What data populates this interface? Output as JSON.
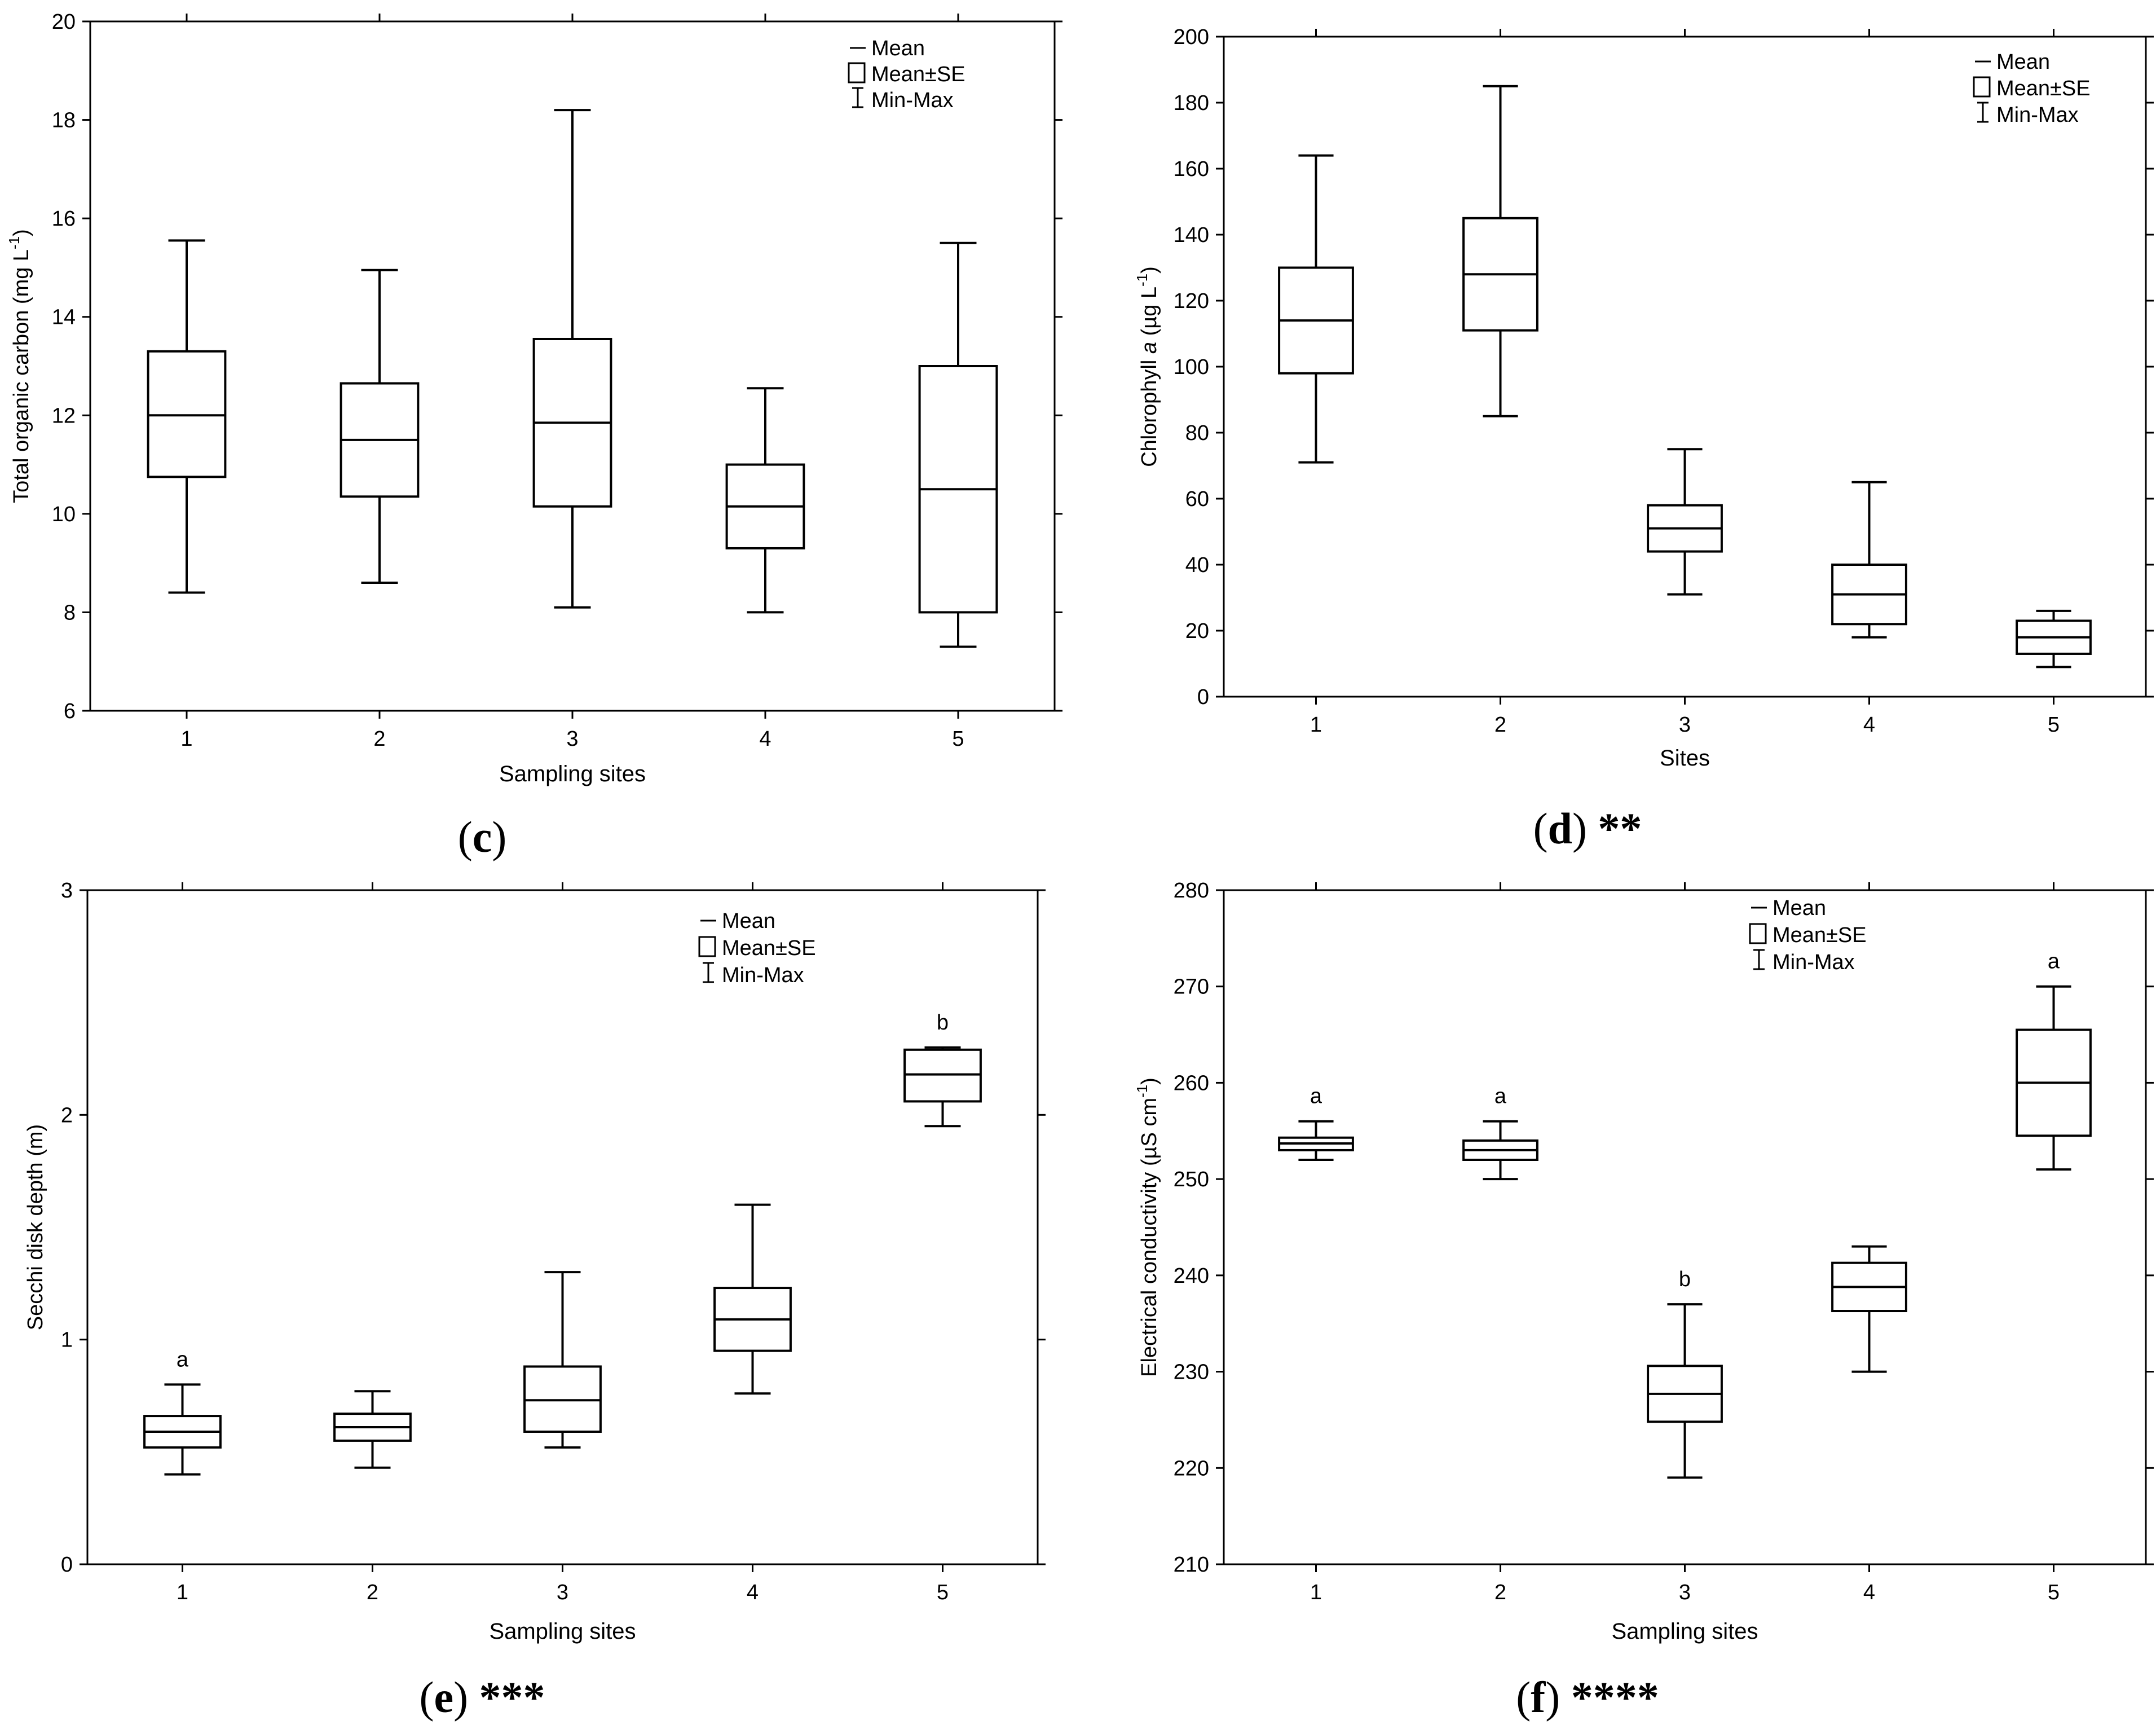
{
  "figure": {
    "legend": {
      "mean": "Mean",
      "se": "Mean±SE",
      "minmax": "Min-Max"
    }
  },
  "chart_data": [
    {
      "id": "c",
      "type": "box",
      "caption_letter": "c",
      "caption_stars": "",
      "xlabel": "Sampling sites",
      "ylabel_main": "Total organic carbon (mg L",
      "ylabel_sup": "-1",
      "ylabel_tail": ")",
      "ylabel_italic": "",
      "ylabel_rest": "",
      "ylim": [
        6,
        20
      ],
      "yticks": [
        6,
        8,
        10,
        12,
        14,
        16,
        18,
        20
      ],
      "categories": [
        "1",
        "2",
        "3",
        "4",
        "5"
      ],
      "series": [
        {
          "site": "1",
          "min": 8.4,
          "se_low": 10.75,
          "mean": 12.0,
          "se_high": 13.3,
          "max": 15.55,
          "letter": ""
        },
        {
          "site": "2",
          "min": 8.6,
          "se_low": 10.35,
          "mean": 11.5,
          "se_high": 12.65,
          "max": 14.95,
          "letter": ""
        },
        {
          "site": "3",
          "min": 8.1,
          "se_low": 10.15,
          "mean": 11.85,
          "se_high": 13.55,
          "max": 18.2,
          "letter": ""
        },
        {
          "site": "4",
          "min": 8.0,
          "se_low": 9.3,
          "mean": 10.15,
          "se_high": 11.0,
          "max": 12.55,
          "letter": ""
        },
        {
          "site": "5",
          "min": 7.3,
          "se_low": 8.0,
          "mean": 10.5,
          "se_high": 13.0,
          "max": 15.5,
          "letter": ""
        }
      ]
    },
    {
      "id": "d",
      "type": "box",
      "caption_letter": "d",
      "caption_stars": "**",
      "xlabel": "Sites",
      "ylabel_main": "Chlorophyll ",
      "ylabel_italic": "a",
      "ylabel_rest": " (µg L",
      "ylabel_sup": "-1",
      "ylabel_tail": ")",
      "ylim": [
        0,
        200
      ],
      "yticks": [
        0,
        20,
        40,
        60,
        80,
        100,
        120,
        140,
        160,
        180,
        200
      ],
      "categories": [
        "1",
        "2",
        "3",
        "4",
        "5"
      ],
      "series": [
        {
          "site": "1",
          "min": 71,
          "se_low": 98,
          "mean": 114,
          "se_high": 130,
          "max": 164,
          "letter": ""
        },
        {
          "site": "2",
          "min": 85,
          "se_low": 111,
          "mean": 128,
          "se_high": 145,
          "max": 185,
          "letter": ""
        },
        {
          "site": "3",
          "min": 31,
          "se_low": 44,
          "mean": 51,
          "se_high": 58,
          "max": 75,
          "letter": ""
        },
        {
          "site": "4",
          "min": 18,
          "se_low": 22,
          "mean": 31,
          "se_high": 40,
          "max": 65,
          "letter": ""
        },
        {
          "site": "5",
          "min": 9,
          "se_low": 13,
          "mean": 18,
          "se_high": 23,
          "max": 26,
          "letter": ""
        }
      ]
    },
    {
      "id": "e",
      "type": "box",
      "caption_letter": "e",
      "caption_stars": "***",
      "xlabel": "Sampling sites",
      "ylabel_main": "Secchi disk depth (m)",
      "ylabel_italic": "",
      "ylabel_rest": "",
      "ylabel_sup": "",
      "ylabel_tail": "",
      "ylim": [
        0,
        3
      ],
      "yticks": [
        0,
        1,
        2,
        3
      ],
      "categories": [
        "1",
        "2",
        "3",
        "4",
        "5"
      ],
      "series": [
        {
          "site": "1",
          "min": 0.4,
          "se_low": 0.52,
          "mean": 0.59,
          "se_high": 0.66,
          "max": 0.8,
          "letter": "a"
        },
        {
          "site": "2",
          "min": 0.43,
          "se_low": 0.55,
          "mean": 0.61,
          "se_high": 0.67,
          "max": 0.77,
          "letter": ""
        },
        {
          "site": "3",
          "min": 0.52,
          "se_low": 0.59,
          "mean": 0.73,
          "se_high": 0.88,
          "max": 1.3,
          "letter": ""
        },
        {
          "site": "4",
          "min": 0.76,
          "se_low": 0.95,
          "mean": 1.09,
          "se_high": 1.23,
          "max": 1.6,
          "letter": ""
        },
        {
          "site": "5",
          "min": 1.95,
          "se_low": 2.06,
          "mean": 2.18,
          "se_high": 2.29,
          "max": 2.3,
          "letter": "b"
        }
      ]
    },
    {
      "id": "f",
      "type": "box",
      "caption_letter": "f",
      "caption_stars": "****",
      "xlabel": "Sampling sites",
      "ylabel_main": "Electrical conductivity (µS cm",
      "ylabel_italic": "",
      "ylabel_rest": "",
      "ylabel_sup": "-1",
      "ylabel_tail": ")",
      "ylim": [
        210,
        280
      ],
      "yticks": [
        210,
        220,
        230,
        240,
        250,
        260,
        270,
        280
      ],
      "categories": [
        "1",
        "2",
        "3",
        "4",
        "5"
      ],
      "series": [
        {
          "site": "1",
          "min": 252,
          "se_low": 253,
          "mean": 253.7,
          "se_high": 254.3,
          "max": 256,
          "letter": "a"
        },
        {
          "site": "2",
          "min": 250,
          "se_low": 252,
          "mean": 253,
          "se_high": 254,
          "max": 256,
          "letter": "a"
        },
        {
          "site": "3",
          "min": 219,
          "se_low": 224.8,
          "mean": 227.7,
          "se_high": 230.6,
          "max": 237,
          "letter": "b"
        },
        {
          "site": "4",
          "min": 230,
          "se_low": 236.3,
          "mean": 238.8,
          "se_high": 241.3,
          "max": 243,
          "letter": ""
        },
        {
          "site": "5",
          "min": 251,
          "se_low": 254.5,
          "mean": 260,
          "se_high": 265.5,
          "max": 270,
          "letter": "a"
        }
      ]
    }
  ]
}
